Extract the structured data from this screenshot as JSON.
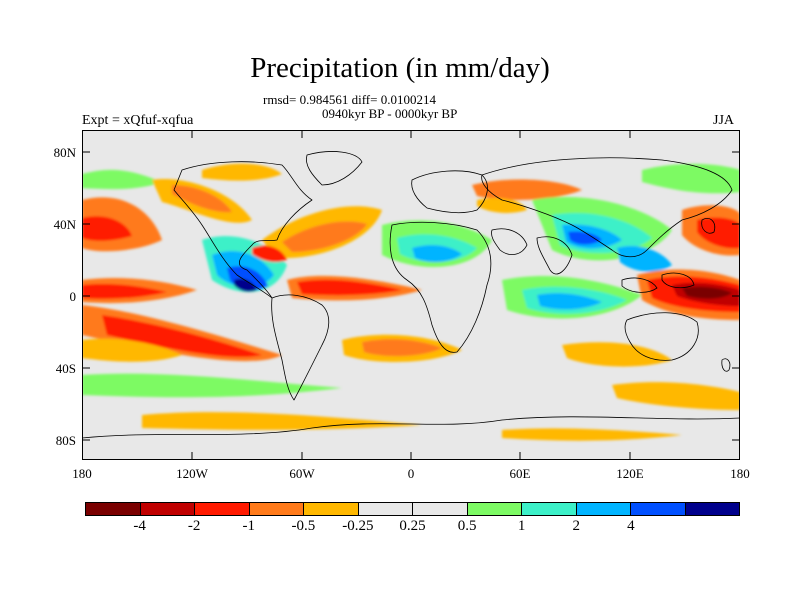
{
  "title": "Precipitation (in mm/day)",
  "stats": "rmsd= 0.984561 diff= 0.0100214",
  "period": "0940kyr BP - 0000kyr BP",
  "expt": "Expt = xQfuf-xqfua",
  "season": "JJA",
  "map": {
    "background_color": "#e8e8e8",
    "lat_ticks": [
      "80N",
      "40N",
      "0",
      "40S",
      "80S"
    ],
    "lon_ticks": [
      "180",
      "120W",
      "60W",
      "0",
      "60E",
      "120E",
      "180"
    ]
  },
  "legend": {
    "colors": [
      "#7a0000",
      "#c00000",
      "#ff1a00",
      "#ff7a1a",
      "#ffb800",
      "#e8e8e8",
      "#e8e8e8",
      "#7dfa64",
      "#3cf0c8",
      "#00b4ff",
      "#0050ff",
      "#00008c"
    ],
    "labels": [
      "-4",
      "-2",
      "-1",
      "-0.5",
      "-0.25",
      "0.25",
      "0.5",
      "1",
      "2",
      "4"
    ]
  }
}
